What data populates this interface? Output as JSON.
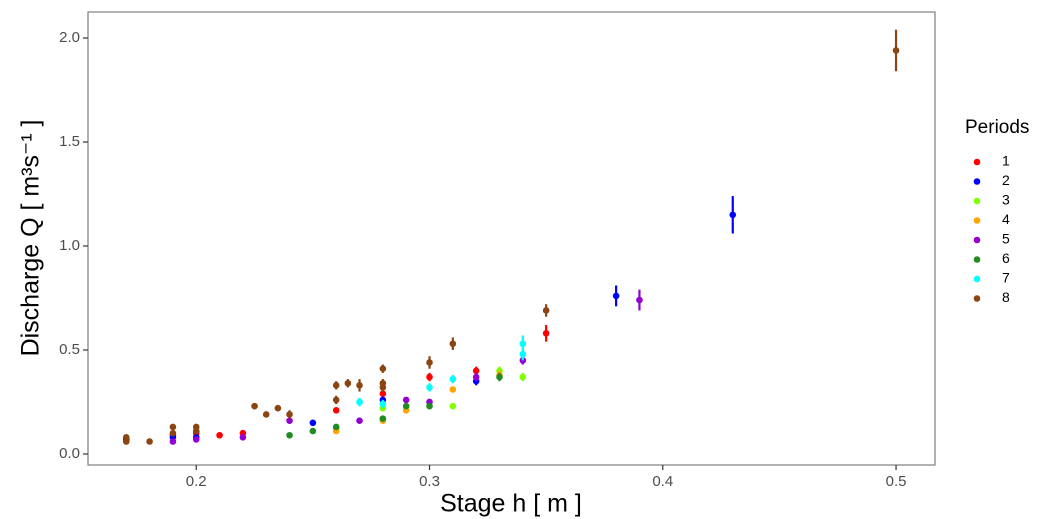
{
  "chart_data": {
    "type": "scatter",
    "xlabel": "Stage h [ m ]",
    "ylabel": "Discharge Q [ m³s⁻¹ ]",
    "legend_title": "Periods",
    "legend": "right",
    "grid": false,
    "xlim": [
      0.1536,
      0.5167
    ],
    "ylim": [
      -0.053,
      2.125
    ],
    "xticks": [
      0.2,
      0.3,
      0.4,
      0.5
    ],
    "yticks": [
      {
        "value": 0,
        "label": "0.0"
      },
      0.5,
      {
        "value": 1,
        "label": "1.0"
      },
      1.5,
      {
        "value": 2,
        "label": "2.0"
      }
    ],
    "series": [
      {
        "name": "1",
        "color": "#ff0000",
        "x": [
          0.17,
          0.19,
          0.2,
          0.21,
          0.22,
          0.26,
          0.28,
          0.3,
          0.32,
          0.35
        ],
        "values": [
          0.07,
          0.09,
          0.1,
          0.09,
          0.1,
          0.21,
          0.29,
          0.37,
          0.4,
          0.58
        ],
        "errors": [
          0.01,
          0.01,
          0.01,
          0.01,
          0.01,
          0.01,
          0.02,
          0.02,
          0.02,
          0.04
        ]
      },
      {
        "name": "2",
        "color": "#0000ff",
        "x": [
          0.17,
          0.19,
          0.2,
          0.25,
          0.28,
          0.32,
          0.38,
          0.43
        ],
        "values": [
          0.07,
          0.08,
          0.08,
          0.15,
          0.26,
          0.35,
          0.76,
          1.15
        ],
        "errors": [
          0.01,
          0.01,
          0.01,
          0.01,
          0.01,
          0.02,
          0.05,
          0.09
        ]
      },
      {
        "name": "3",
        "color": "#80ff00",
        "x": [
          0.26,
          0.28,
          0.31,
          0.33,
          0.34
        ],
        "values": [
          0.12,
          0.22,
          0.23,
          0.4,
          0.37
        ],
        "errors": [
          0.01,
          0.01,
          0.01,
          0.02,
          0.02
        ]
      },
      {
        "name": "4",
        "color": "#ffa500",
        "x": [
          0.26,
          0.28,
          0.29,
          0.31,
          0.33
        ],
        "values": [
          0.11,
          0.16,
          0.21,
          0.31,
          0.38
        ],
        "errors": [
          0.01,
          0.01,
          0.01,
          0.01,
          0.02
        ]
      },
      {
        "name": "5",
        "color": "#9400d3",
        "x": [
          0.19,
          0.2,
          0.22,
          0.24,
          0.27,
          0.29,
          0.3,
          0.32,
          0.34,
          0.39
        ],
        "values": [
          0.06,
          0.07,
          0.08,
          0.16,
          0.16,
          0.26,
          0.25,
          0.37,
          0.45,
          0.74
        ],
        "errors": [
          0.01,
          0.01,
          0.01,
          0.01,
          0.01,
          0.01,
          0.01,
          0.02,
          0.02,
          0.05
        ]
      },
      {
        "name": "6",
        "color": "#228b22",
        "x": [
          0.24,
          0.25,
          0.26,
          0.28,
          0.29,
          0.3,
          0.33
        ],
        "values": [
          0.09,
          0.11,
          0.13,
          0.17,
          0.23,
          0.23,
          0.37
        ],
        "errors": [
          0.01,
          0.01,
          0.01,
          0.01,
          0.01,
          0.01,
          0.02
        ]
      },
      {
        "name": "7",
        "color": "#00ffff",
        "x": [
          0.27,
          0.28,
          0.3,
          0.31,
          0.34,
          0.34
        ],
        "values": [
          0.25,
          0.24,
          0.32,
          0.36,
          0.48,
          0.53
        ],
        "errors": [
          0.02,
          0.02,
          0.02,
          0.02,
          0.03,
          0.04
        ]
      },
      {
        "name": "8",
        "color": "#8b4513",
        "x": [
          0.17,
          0.17,
          0.18,
          0.19,
          0.19,
          0.2,
          0.2,
          0.225,
          0.23,
          0.235,
          0.24,
          0.26,
          0.26,
          0.265,
          0.27,
          0.28,
          0.28,
          0.28,
          0.3,
          0.31,
          0.35,
          0.5
        ],
        "values": [
          0.08,
          0.06,
          0.06,
          0.13,
          0.1,
          0.13,
          0.11,
          0.23,
          0.19,
          0.22,
          0.19,
          0.26,
          0.33,
          0.34,
          0.33,
          0.41,
          0.34,
          0.32,
          0.44,
          0.53,
          0.69,
          1.94
        ],
        "errors": [
          0.01,
          0.01,
          0.01,
          0.01,
          0.01,
          0.01,
          0.01,
          0.01,
          0.01,
          0.01,
          0.02,
          0.02,
          0.02,
          0.02,
          0.03,
          0.02,
          0.02,
          0.02,
          0.03,
          0.03,
          0.03,
          0.1
        ]
      }
    ]
  }
}
